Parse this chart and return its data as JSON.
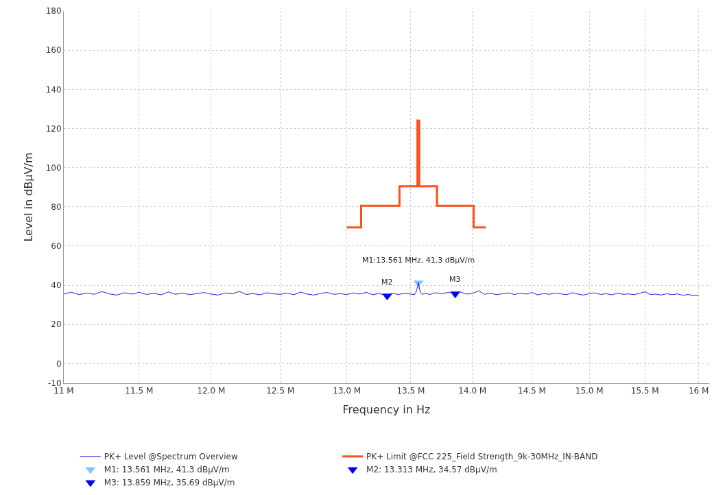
{
  "chart_data": {
    "type": "line",
    "xlabel": "Frequency in Hz",
    "ylabel": "Level in dBµV/m",
    "log": "x",
    "grid": true,
    "legend": "bottom",
    "xlim": [
      11000000,
      16100000
    ],
    "xticks": [
      {
        "value": 11000000,
        "label": "11 M"
      },
      {
        "value": 11500000,
        "label": "11.5 M"
      },
      {
        "value": 12000000,
        "label": "12.0 M"
      },
      {
        "value": 12500000,
        "label": "12.5 M"
      },
      {
        "value": 13000000,
        "label": "13.0 M"
      },
      {
        "value": 13500000,
        "label": "13.5 M"
      },
      {
        "value": 14000000,
        "label": "14.0 M"
      },
      {
        "value": 14500000,
        "label": "14.5 M"
      },
      {
        "value": 15000000,
        "label": "15.0 M"
      },
      {
        "value": 15500000,
        "label": "15.5 M"
      },
      {
        "value": 16000000,
        "label": "16 M"
      }
    ],
    "ylim": [
      -10,
      180
    ],
    "yticks": [
      -10,
      0,
      20,
      40,
      60,
      80,
      100,
      120,
      140,
      160,
      180
    ],
    "series": [
      {
        "name": "PK+ Level @Spectrum Overview",
        "color": "#1f1fe0",
        "x": [
          11000000,
          11050000,
          11100000,
          11150000,
          11200000,
          11250000,
          11300000,
          11350000,
          11400000,
          11450000,
          11500000,
          11550000,
          11600000,
          11650000,
          11700000,
          11750000,
          11800000,
          11850000,
          11900000,
          11950000,
          12000000,
          12050000,
          12100000,
          12150000,
          12200000,
          12250000,
          12300000,
          12350000,
          12400000,
          12450000,
          12500000,
          12550000,
          12600000,
          12650000,
          12700000,
          12750000,
          12800000,
          12850000,
          12900000,
          12950000,
          13000000,
          13050000,
          13100000,
          13150000,
          13200000,
          13250000,
          13313000,
          13350000,
          13400000,
          13450000,
          13500000,
          13530000,
          13545000,
          13561000,
          13575000,
          13590000,
          13620000,
          13650000,
          13700000,
          13750000,
          13800000,
          13859000,
          13900000,
          13950000,
          14000000,
          14050000,
          14100000,
          14150000,
          14200000,
          14250000,
          14300000,
          14350000,
          14400000,
          14450000,
          14500000,
          14550000,
          14600000,
          14650000,
          14700000,
          14750000,
          14800000,
          14850000,
          14900000,
          14950000,
          15000000,
          15050000,
          15100000,
          15150000,
          15200000,
          15250000,
          15300000,
          15350000,
          15400000,
          15450000,
          15500000,
          15550000,
          15600000,
          15650000,
          15700000,
          15750000,
          15800000,
          15850000,
          15900000,
          15950000,
          16000000
        ],
        "values": [
          35.5,
          36.5,
          35.2,
          36.0,
          35.4,
          36.8,
          35.6,
          35.0,
          36.2,
          35.5,
          36.4,
          35.3,
          35.9,
          35.1,
          36.6,
          35.4,
          36.0,
          35.2,
          35.8,
          36.3,
          35.5,
          35.0,
          36.1,
          35.6,
          36.9,
          35.3,
          35.8,
          35.1,
          36.2,
          35.6,
          35.4,
          36.0,
          35.2,
          36.5,
          35.5,
          35.0,
          35.9,
          36.3,
          35.4,
          35.7,
          35.3,
          36.1,
          35.5,
          36.4,
          35.2,
          35.8,
          34.57,
          36.0,
          35.3,
          35.9,
          35.5,
          35.2,
          37.0,
          41.3,
          36.5,
          35.4,
          35.9,
          35.3,
          36.2,
          35.6,
          36.4,
          35.69,
          36.6,
          35.5,
          35.8,
          37.2,
          35.4,
          36.0,
          35.2,
          35.7,
          36.1,
          35.3,
          35.9,
          35.5,
          36.3,
          35.1,
          35.8,
          35.4,
          36.0,
          35.6,
          35.2,
          36.2,
          35.5,
          35.0,
          35.8,
          36.1,
          35.3,
          35.7,
          35.1,
          36.0,
          35.4,
          35.6,
          35.2,
          35.9,
          36.7,
          35.3,
          35.5,
          35.0,
          35.7,
          35.2,
          35.6,
          34.9,
          35.3,
          34.8,
          35.0
        ]
      },
      {
        "name": "PK+ Limit @FCC 225_Field Strength_9k-30MHz_IN-BAND",
        "type": "step",
        "color": "#ff4f1a",
        "x": [
          13000000,
          13110000,
          13410000,
          13553000,
          13567000,
          13710000,
          14010000,
          14110000
        ],
        "values": [
          69.5,
          80.5,
          90.5,
          124,
          90.5,
          80.5,
          69.5,
          69.5
        ]
      },
      {
        "name": "M1: 13.561 MHz, 41.3 dBµV/m",
        "type": "scatter",
        "marker": "triangle",
        "color": "#80c4ff",
        "x": [
          13561000
        ],
        "values": [
          41.3
        ]
      },
      {
        "name": "M2: 13.313 MHz, 34.57 dBµV/m",
        "type": "scatter",
        "marker": "triangle",
        "color": "#0000ee",
        "x": [
          13313000
        ],
        "values": [
          34.57
        ]
      },
      {
        "name": "M3: 13.859 MHz, 35.69 dBµV/m",
        "type": "scatter",
        "marker": "triangle",
        "color": "#0000ee",
        "x": [
          13859000
        ],
        "values": [
          35.69
        ]
      }
    ],
    "annotations": [
      {
        "text": "M1:13.561 MHz, 41.3 dBµV/m",
        "x": 13561000,
        "y": 41.3
      },
      {
        "text": "M2",
        "x": 13313000,
        "y": 34.57
      },
      {
        "text": "M3",
        "x": 13859000,
        "y": 35.69
      }
    ]
  }
}
